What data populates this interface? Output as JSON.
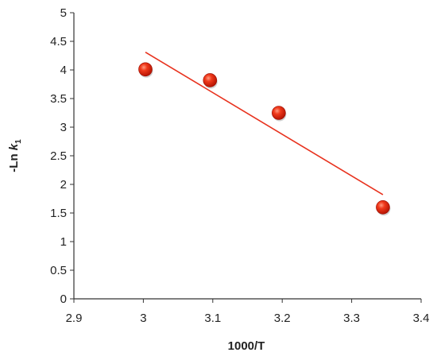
{
  "chart_data": {
    "type": "scatter",
    "title": "",
    "xlabel": "1000/T",
    "ylabel": {
      "prefix": "-Ln ",
      "symbol": "k",
      "subscript": "1"
    },
    "xlim": [
      2.9,
      3.4
    ],
    "ylim": [
      0,
      5
    ],
    "xticks": [
      "2.9",
      "3",
      "3.1",
      "3.2",
      "3.3",
      "3.4"
    ],
    "yticks": [
      "0",
      "0.5",
      "1",
      "1.5",
      "2",
      "2.5",
      "3",
      "3.5",
      "4",
      "4.5",
      "5"
    ],
    "grid": false,
    "legend": "none",
    "series": [
      {
        "marker_color": "#e0200f",
        "points": [
          {
            "x": 3.003,
            "y": 4.01
          },
          {
            "x": 3.096,
            "y": 3.82
          },
          {
            "x": 3.195,
            "y": 3.25
          },
          {
            "x": 3.345,
            "y": 1.6
          }
        ]
      }
    ],
    "trendline": {
      "color": "#e8321e",
      "start": {
        "x": 3.003,
        "y": 4.31
      },
      "end": {
        "x": 3.345,
        "y": 1.82
      }
    },
    "axis_color": "#333333"
  }
}
